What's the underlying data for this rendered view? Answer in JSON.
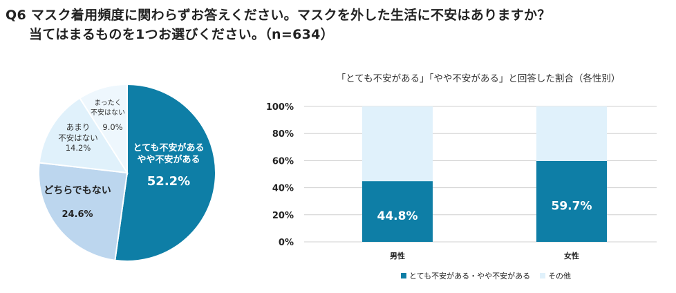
{
  "header": {
    "line1": "Q6 マスク着用頻度に関わらずお答えください。マスクを外した生活に不安はありますか？",
    "line2": "当てはまるものを1つお選びください。（n=634）"
  },
  "colors": {
    "dark": "#0e7ea6",
    "mid": "#bcd6ee",
    "light": "#e0f1fb",
    "lighter": "#eef7fd",
    "grid": "#d0d0d0"
  },
  "chart_data": [
    {
      "type": "pie",
      "title": "",
      "slices": [
        {
          "label_lines": [
            "とても不安がある",
            "やや不安がある"
          ],
          "value": 52.2,
          "value_label": "52.2%"
        },
        {
          "label_lines": [
            "どちらでもない"
          ],
          "value": 24.6,
          "value_label": "24.6%"
        },
        {
          "label_lines": [
            "あまり",
            "不安はない"
          ],
          "value": 14.2,
          "value_label": "14.2%"
        },
        {
          "label_lines": [
            "まったく",
            "不安はない"
          ],
          "value": 9.0,
          "value_label": "9.0%"
        }
      ]
    },
    {
      "type": "bar",
      "stacked": true,
      "title": "「とても不安がある」「やや不安がある」と回答した割合（各性別）",
      "categories": [
        "男性",
        "女性"
      ],
      "series": [
        {
          "name": "とても不安がある・やや不安がある",
          "values": [
            44.8,
            59.7
          ],
          "value_labels": [
            "44.8%",
            "59.7%"
          ]
        },
        {
          "name": "その他",
          "values": [
            55.2,
            40.3
          ]
        }
      ],
      "ylim": [
        0,
        100
      ],
      "yticks": [
        "0%",
        "20%",
        "40%",
        "60%",
        "80%",
        "100%"
      ],
      "legend_position": "bottom"
    }
  ]
}
